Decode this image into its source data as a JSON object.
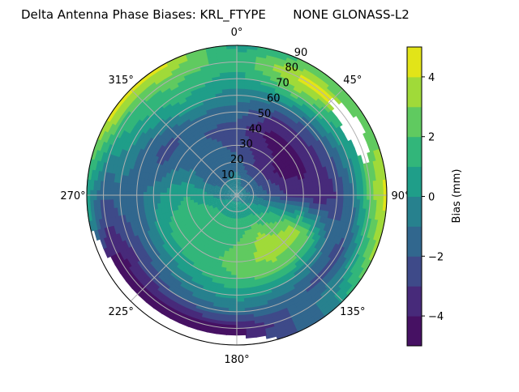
{
  "chart_data": {
    "type": "heatmap",
    "subtype": "polar-filled-contour",
    "title": "Delta Antenna Phase Biases: KRL_FTYPE       NONE GLONASS-L2",
    "angle_tick_labels": [
      "0°",
      "45°",
      "90°",
      "135°",
      "180°",
      "225°",
      "270°",
      "315°"
    ],
    "radial_tick_labels": [
      "10",
      "20",
      "30",
      "40",
      "50",
      "60",
      "70",
      "80",
      "90"
    ],
    "radial_range": [
      0,
      90
    ],
    "angular_direction": "clockwise",
    "angular_zero": "top",
    "grid": true,
    "azimuth_deg": [
      0,
      30,
      60,
      90,
      120,
      150,
      180,
      210,
      240,
      270,
      300,
      330
    ],
    "zenith_deg": [
      0,
      10,
      20,
      30,
      40,
      50,
      60,
      70,
      80,
      90
    ],
    "bias_mm": [
      [
        -0.5,
        -0.5,
        -1.5,
        -2.5,
        -2.5,
        -1.5,
        -0.5,
        0.5,
        1.5,
        0.5
      ],
      [
        -0.5,
        -1.5,
        -3,
        -3.5,
        -4.5,
        -3.5,
        -1,
        2.5,
        4.5,
        2
      ],
      [
        -0.5,
        -1.5,
        -3,
        -4.5,
        -4.5,
        -3.5,
        -2,
        0.5,
        null,
        2
      ],
      [
        -0.5,
        -1,
        -2,
        -3,
        -3.5,
        -4,
        -3,
        -1,
        2.5,
        4.5
      ],
      [
        -0.5,
        0,
        1,
        2,
        3.5,
        2,
        -1,
        -2.5,
        0.5,
        3
      ],
      [
        -0.5,
        0.5,
        2,
        3.5,
        3.5,
        2.5,
        0,
        -2,
        -1.5,
        -2
      ],
      [
        -0.5,
        0.5,
        1.5,
        2,
        2.5,
        2,
        0.5,
        -1,
        -4.5,
        null
      ],
      [
        -0.5,
        0.5,
        1.5,
        1.5,
        1.5,
        1,
        -0.5,
        -2,
        -4.5,
        null
      ],
      [
        -0.5,
        0.5,
        1.5,
        1.5,
        1.5,
        0.5,
        -1.5,
        -3,
        -4.5,
        null
      ],
      [
        -0.5,
        -0.5,
        0.5,
        1,
        0.5,
        -0.5,
        -1.5,
        -1.5,
        -2,
        0.5
      ],
      [
        -0.5,
        -1,
        -1.5,
        -1,
        -1.5,
        -2.5,
        -1.5,
        0.5,
        1.5,
        4.5
      ],
      [
        -0.5,
        -1,
        -1.5,
        -1.5,
        -2,
        -1.5,
        0.5,
        1.5,
        2.5,
        4.5
      ]
    ],
    "levels": [
      -5,
      -4,
      -3,
      -2,
      -1,
      0,
      1,
      2,
      3,
      4,
      5
    ],
    "colormap": "viridis",
    "level_colors": [
      "#461163",
      "#472a7a",
      "#3e4a89",
      "#31678e",
      "#27818e",
      "#1f9e89",
      "#32b67a",
      "#60ca60",
      "#a0da39",
      "#e2e418"
    ],
    "colorbar": {
      "label": "Bias (mm)",
      "tick_labels": [
        "−4",
        "−2",
        "0",
        "2",
        "4"
      ],
      "ticks": [
        -4,
        -2,
        0,
        2,
        4
      ],
      "range": [
        -5,
        5
      ],
      "placement": "right"
    }
  }
}
